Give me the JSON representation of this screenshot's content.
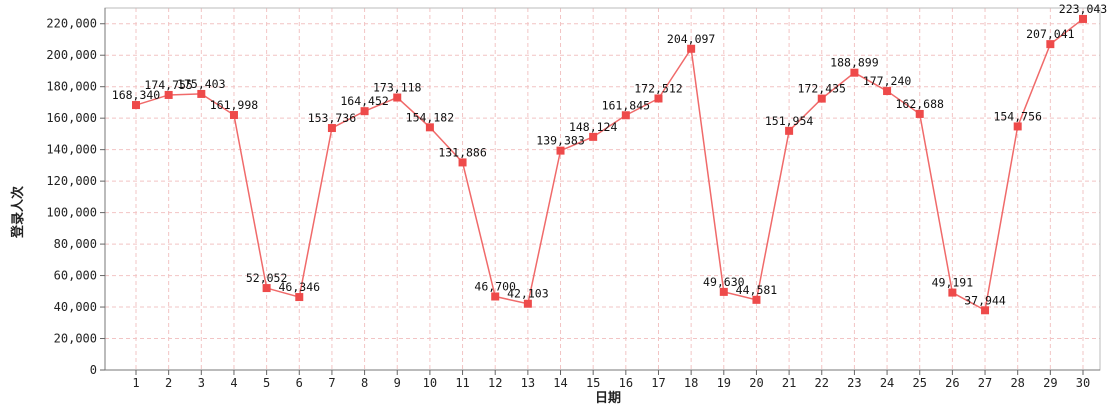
{
  "chart_data": {
    "type": "line",
    "title": "",
    "xlabel": "日期",
    "ylabel": "登录人次",
    "categories": [
      "1",
      "2",
      "3",
      "4",
      "5",
      "6",
      "7",
      "8",
      "9",
      "10",
      "11",
      "12",
      "13",
      "14",
      "15",
      "16",
      "17",
      "18",
      "19",
      "20",
      "21",
      "22",
      "23",
      "24",
      "25",
      "26",
      "27",
      "28",
      "29",
      "30"
    ],
    "series": [
      {
        "values": [
          168340,
          174755,
          175403,
          161998,
          52052,
          46346,
          153736,
          164452,
          173118,
          154182,
          131886,
          46700,
          42103,
          139383,
          148124,
          161845,
          172512,
          204097,
          49630,
          44581,
          151954,
          172435,
          188899,
          177240,
          162688,
          49191,
          37944,
          154756,
          207041,
          223043
        ],
        "labels": [
          "168,340",
          "174,755",
          "175,403",
          "161,998",
          "52,052",
          "46,346",
          "153,736",
          "164,452",
          "173,118",
          "154,182",
          "131,886",
          "46,700",
          "42,103",
          "139,383",
          "148,124",
          "161,845",
          "172,512",
          "204,097",
          "49,630",
          "44,581",
          "151,954",
          "172,435",
          "188,899",
          "177,240",
          "162,688",
          "49,191",
          "37,944",
          "154,756",
          "207,041",
          "223,043"
        ]
      }
    ],
    "yticks": [
      0,
      20000,
      40000,
      60000,
      80000,
      100000,
      120000,
      140000,
      160000,
      180000,
      200000,
      220000
    ],
    "ytick_labels": [
      "0",
      "20,000",
      "40,000",
      "60,000",
      "80,000",
      "100,000",
      "120,000",
      "140,000",
      "160,000",
      "180,000",
      "200,000",
      "220,000"
    ],
    "ylim": [
      0,
      230000
    ],
    "grid": true,
    "colors": {
      "line": "#f06a6a",
      "marker": "#ee4a4a",
      "grid": "#f2c4c4"
    }
  }
}
